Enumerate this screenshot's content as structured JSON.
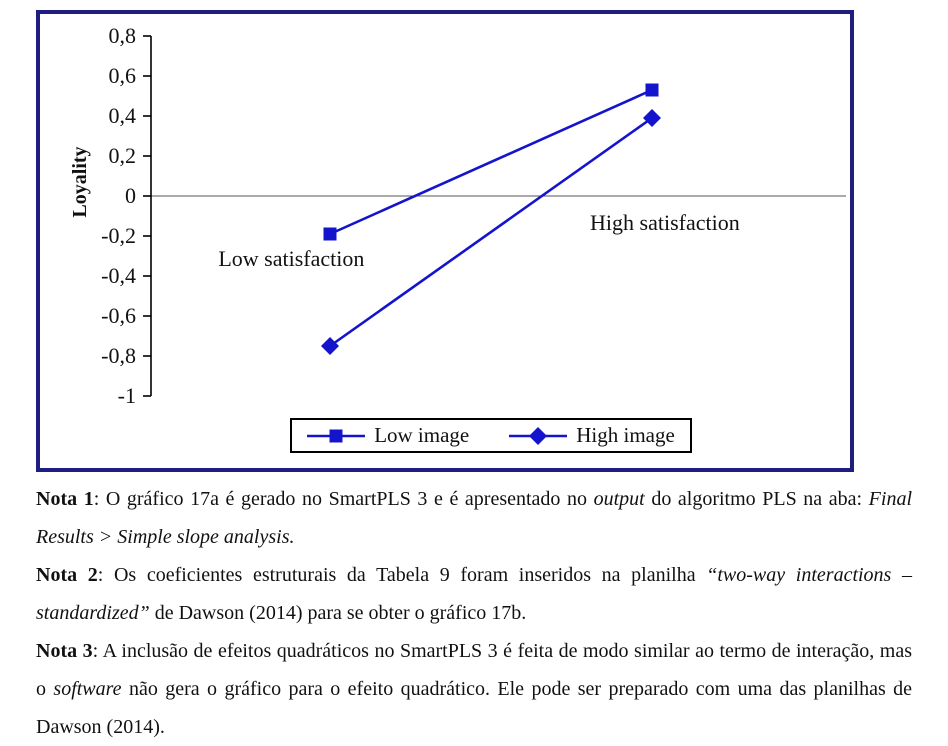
{
  "chart_data": {
    "type": "line",
    "title": "",
    "categories": [
      "Low satisfaction",
      "High satisfaction"
    ],
    "xlabel": "",
    "ylabel": "Loyality",
    "ylim": [
      -1,
      0.8
    ],
    "ytick_labels": [
      {
        "value": 0.8,
        "label": "0,8"
      },
      {
        "value": 0.6,
        "label": "0,6"
      },
      {
        "value": 0.4,
        "label": "0,4"
      },
      {
        "value": 0.2,
        "label": "0,2"
      },
      {
        "value": 0,
        "label": "0"
      },
      {
        "value": -0.2,
        "label": "-0,2"
      },
      {
        "value": -0.4,
        "label": "-0,4"
      },
      {
        "value": -0.6,
        "label": "-0,6"
      },
      {
        "value": -0.8,
        "label": "-0,8"
      },
      {
        "value": -1,
        "label": "-1"
      }
    ],
    "series": [
      {
        "name": "Low image",
        "marker": "square",
        "values": [
          -0.19,
          0.53
        ]
      },
      {
        "name": "High image",
        "marker": "diamond",
        "values": [
          -0.75,
          0.39
        ]
      }
    ],
    "annotations": [
      {
        "text": "Low satisfaction",
        "cx": -0.12,
        "cy": -0.315
      },
      {
        "text": "High satisfaction",
        "cx": 1.04,
        "cy": -0.135
      }
    ],
    "colors": {
      "series": "#1414cc",
      "frame": "#1e1e82",
      "zero_line": "#555555",
      "axis": "#000000"
    },
    "grid": false,
    "legend_position": "bottom-center"
  },
  "notes": {
    "note1": {
      "b": "Nota 1",
      "s1": ": O gráfico 17a é gerado no SmartPLS 3 e é apresentado no ",
      "i1": "output",
      "s2": " do algoritmo PLS na aba: ",
      "i2": "Final Results > Simple slope analysis."
    },
    "note2": {
      "b": "Nota 2",
      "s1": ": Os coeficientes estruturais da Tabela 9 foram inseridos na planilha ",
      "i1": "“two-way interactions – standardized”",
      "s2": " de Dawson (2014) para se obter o gráfico 17b."
    },
    "note3": {
      "b": "Nota 3",
      "s1": ": A inclusão de efeitos quadráticos no SmartPLS 3 é feita de modo similar ao termo de interação, mas o ",
      "i1": "software",
      "s2": " não gera o gráfico para o efeito quadrático. Ele pode ser preparado com uma das planilhas de Dawson (2014)."
    }
  }
}
